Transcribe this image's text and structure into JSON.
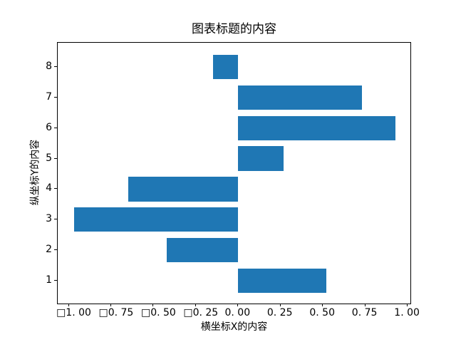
{
  "figure": {
    "background": "#ffffff",
    "text_color": "#000000",
    "axis_color": "#000000"
  },
  "chart_data": {
    "type": "bar",
    "orientation": "horizontal",
    "title": "图表标题的内容",
    "xlabel": "横坐标X的内容",
    "ylabel": "纵坐标Y的内容",
    "categories": [
      "1",
      "2",
      "3",
      "4",
      "5",
      "6",
      "7",
      "8"
    ],
    "values": [
      0.52,
      -0.42,
      -0.97,
      -0.65,
      0.27,
      0.93,
      0.73,
      -0.15
    ],
    "bar_color": "#1f77b4",
    "bar_height": 0.8,
    "xlim": [
      -1.065,
      1.025
    ],
    "ylim": [
      0.21,
      8.79
    ],
    "x_ticks": [
      {
        "value": -1.0,
        "label": "□1. 00"
      },
      {
        "value": -0.75,
        "label": "□0. 75"
      },
      {
        "value": -0.5,
        "label": "□0. 50"
      },
      {
        "value": -0.25,
        "label": "□0. 25"
      },
      {
        "value": 0.0,
        "label": "0. 00"
      },
      {
        "value": 0.25,
        "label": "0. 25"
      },
      {
        "value": 0.5,
        "label": "0. 50"
      },
      {
        "value": 0.75,
        "label": "0. 75"
      },
      {
        "value": 1.0,
        "label": "1. 00"
      }
    ],
    "y_ticks": [
      {
        "value": 1,
        "label": "1"
      },
      {
        "value": 2,
        "label": "2"
      },
      {
        "value": 3,
        "label": "3"
      },
      {
        "value": 4,
        "label": "4"
      },
      {
        "value": 5,
        "label": "5"
      },
      {
        "value": 6,
        "label": "6"
      },
      {
        "value": 7,
        "label": "7"
      },
      {
        "value": 8,
        "label": "8"
      }
    ],
    "grid": false,
    "legend": null
  }
}
